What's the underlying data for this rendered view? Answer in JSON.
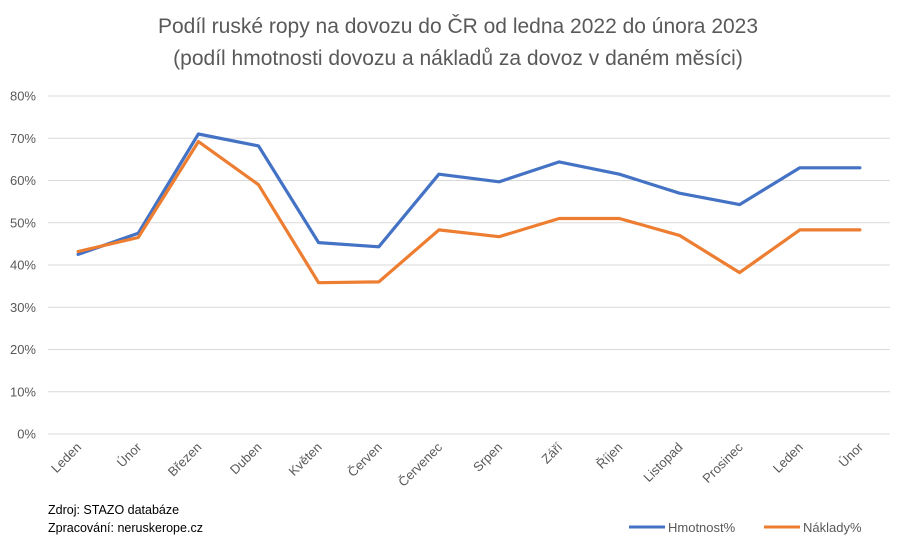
{
  "chart_data": {
    "type": "line",
    "title": "Podíl ruské ropy na dovozu do ČR od ledna 2022 do února 2023",
    "subtitle": "(podíl hmotnosti dovozu a nákladů za dovoz v daném měsíci)",
    "categories": [
      "Leden",
      "Únor",
      "Březen",
      "Duben",
      "Květen",
      "Červen",
      "Červenec",
      "Srpen",
      "Září",
      "Říjen",
      "Listopad",
      "Prosinec",
      "Leden",
      "Únor"
    ],
    "y_ticks": [
      "0%",
      "10%",
      "20%",
      "30%",
      "40%",
      "50%",
      "60%",
      "70%",
      "80%"
    ],
    "ylim": [
      0,
      80
    ],
    "grid": true,
    "legend_position": "bottom-right",
    "series": [
      {
        "name": "Hmotnost%",
        "color": "#4472c4",
        "values": [
          42.5,
          47.5,
          71,
          68.2,
          45.3,
          44.3,
          61.5,
          59.7,
          64.4,
          61.5,
          57,
          54.3,
          63,
          63
        ]
      },
      {
        "name": "Náklady%",
        "color": "#ed7d31",
        "values": [
          43.2,
          46.5,
          69.2,
          59,
          35.8,
          36,
          48.3,
          46.7,
          51,
          51,
          47,
          38.2,
          48.3,
          48.3
        ]
      }
    ],
    "source_lines": [
      "Zdroj: STAZO databáze",
      "Zpracování: neruskerope.cz"
    ]
  }
}
